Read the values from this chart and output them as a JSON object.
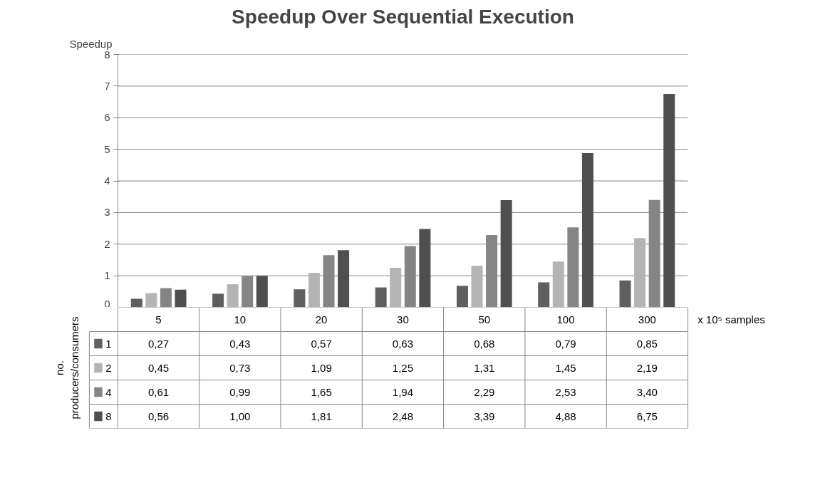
{
  "chart_data": {
    "type": "bar",
    "title": "Speedup Over Sequential Execution",
    "ylabel": "Speedup",
    "xlabel": "x 10⁵ samples",
    "legend_title": "no. producers/consumers",
    "categories": [
      "5",
      "10",
      "20",
      "30",
      "50",
      "100",
      "300"
    ],
    "ylim": [
      0,
      8
    ],
    "yticks": [
      0,
      1,
      2,
      3,
      4,
      5,
      6,
      7,
      8
    ],
    "grid": "y",
    "legend": "bottom",
    "series": [
      {
        "name": "1",
        "color": "#5f5f5f",
        "values": [
          0.27,
          0.43,
          0.57,
          0.63,
          0.68,
          0.79,
          0.85
        ],
        "value_labels": [
          "0,27",
          "0,43",
          "0,57",
          "0,63",
          "0,68",
          "0,79",
          "0,85"
        ]
      },
      {
        "name": "2",
        "color": "#b4b4b4",
        "values": [
          0.45,
          0.73,
          1.09,
          1.25,
          1.31,
          1.45,
          2.19
        ],
        "value_labels": [
          "0,45",
          "0,73",
          "1,09",
          "1,25",
          "1,31",
          "1,45",
          "2,19"
        ]
      },
      {
        "name": "4",
        "color": "#858585",
        "values": [
          0.61,
          0.99,
          1.65,
          1.94,
          2.29,
          2.53,
          3.4
        ],
        "value_labels": [
          "0,61",
          "0,99",
          "1,65",
          "1,94",
          "2,29",
          "2,53",
          "3,40"
        ]
      },
      {
        "name": "8",
        "color": "#4f4f4f",
        "values": [
          0.56,
          1.0,
          1.81,
          2.48,
          3.39,
          4.88,
          6.75
        ],
        "value_labels": [
          "0,56",
          "1,00",
          "1,81",
          "2,48",
          "3,39",
          "4,88",
          "6,75"
        ]
      }
    ]
  }
}
